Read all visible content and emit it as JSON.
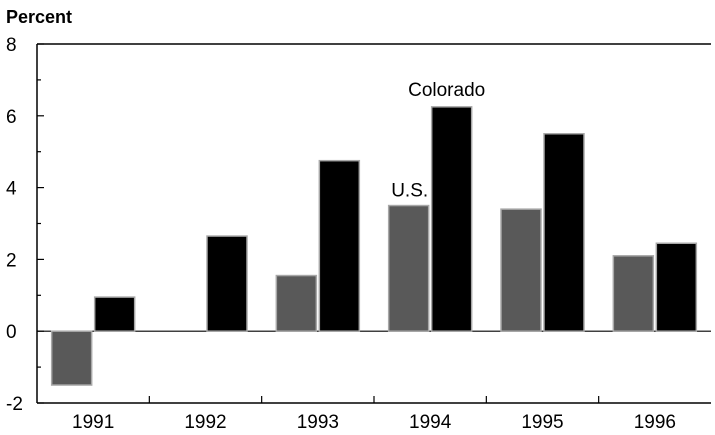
{
  "chart_data": {
    "type": "bar",
    "title": "",
    "ylabel": "Percent",
    "xlabel": "",
    "categories": [
      "1991",
      "1992",
      "1993",
      "1994",
      "1995",
      "1996"
    ],
    "series": [
      {
        "name": "U.S.",
        "color": "#595959",
        "values": [
          -1.5,
          0.0,
          1.55,
          3.5,
          3.4,
          2.1
        ]
      },
      {
        "name": "Colorado",
        "color": "#000000",
        "values": [
          0.95,
          2.65,
          4.75,
          6.25,
          5.5,
          2.45
        ]
      }
    ],
    "ylim": [
      -2,
      8
    ],
    "yticks": [
      "-2",
      "0",
      "2",
      "4",
      "6",
      "8"
    ],
    "grid": false,
    "legend": "inline labels"
  }
}
